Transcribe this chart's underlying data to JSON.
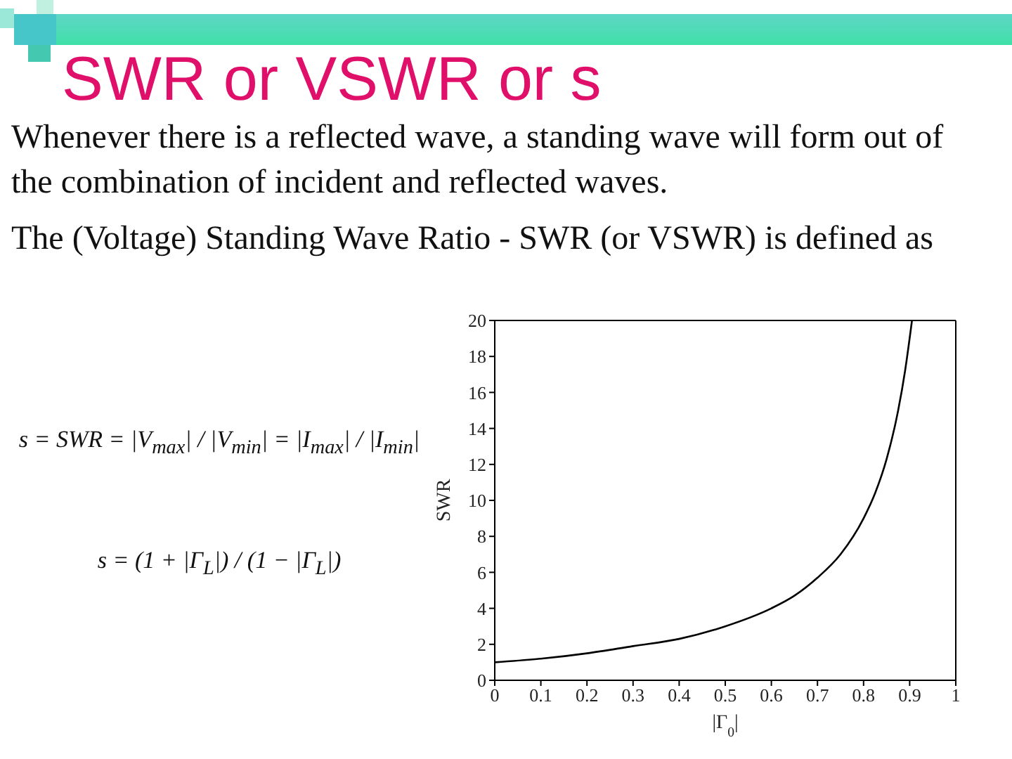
{
  "chart_data": {
    "type": "line",
    "title": "SWR or VSWR or s",
    "subtitle": "Whenever there is a reflected wave, a standing wave will form out of the combination of incident and reflected waves.",
    "annotations": [
      "The (Voltage) Standing Wave Ratio - SWR (or VSWR) is defined as",
      "s = SWR = |V$_{max}$| / |V$_{min}$| = |I$_{max}$| / |I$_{min}$|",
      "s = (1 + |Γ$_{L}$|) / (1 − |Γ$_{L}$|)"
    ],
    "xlabel": "|Γ$_{0}$|",
    "ylabel": "SWR",
    "x": [
      0,
      0.1,
      0.2,
      0.3,
      0.4,
      0.5,
      0.6,
      0.65,
      0.7,
      0.75,
      0.8,
      0.825,
      0.85,
      0.875,
      0.89,
      0.905
    ],
    "series": [
      {
        "color": "#000000",
        "values": [
          1,
          1.2,
          1.5,
          1.9,
          2.3,
          3,
          4,
          4.7,
          5.7,
          7,
          9,
          10.4,
          12.3,
          15,
          17.2,
          20
        ]
      }
    ],
    "xlim": [
      0,
      1
    ],
    "ylim": [
      0,
      20
    ],
    "xticks": [
      0,
      0.1,
      0.2,
      0.3,
      0.4,
      0.5,
      0.6,
      0.7,
      0.8,
      0.9,
      1
    ],
    "yticks": [
      0,
      2,
      4,
      6,
      8,
      10,
      12,
      14,
      16,
      18,
      20
    ],
    "marker": "none"
  }
}
